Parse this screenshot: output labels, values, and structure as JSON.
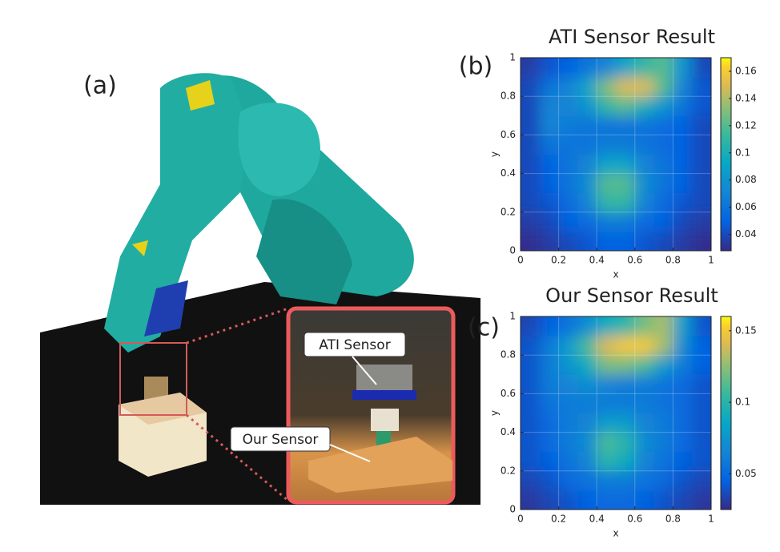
{
  "figure": {
    "panel_a": "(a)",
    "panel_b": "(b)",
    "panel_c": "(c)",
    "callout_ati": "ATI Sensor",
    "callout_ours": "Our Sensor"
  },
  "chart_data": [
    {
      "type": "heatmap",
      "title": "ATI Sensor Result",
      "xlabel": "x",
      "ylabel": "y",
      "xlim": [
        0,
        1
      ],
      "ylim": [
        0,
        1
      ],
      "xticks": [
        0,
        0.2,
        0.4,
        0.6,
        0.8,
        1
      ],
      "yticks": [
        0,
        0.2,
        0.4,
        0.6,
        0.8,
        1
      ],
      "colormap": "parula",
      "clim": [
        0.028,
        0.17
      ],
      "cticks": [
        0.04,
        0.06,
        0.08,
        0.1,
        0.12,
        0.14,
        0.16
      ],
      "z": [
        [
          0.03,
          0.035,
          0.04,
          0.045,
          0.05,
          0.05,
          0.045,
          0.04,
          0.035,
          0.03
        ],
        [
          0.035,
          0.04,
          0.05,
          0.055,
          0.065,
          0.065,
          0.055,
          0.05,
          0.04,
          0.035
        ],
        [
          0.04,
          0.045,
          0.055,
          0.07,
          0.11,
          0.11,
          0.07,
          0.055,
          0.045,
          0.04
        ],
        [
          0.04,
          0.05,
          0.06,
          0.075,
          0.12,
          0.12,
          0.075,
          0.06,
          0.05,
          0.04
        ],
        [
          0.04,
          0.05,
          0.06,
          0.07,
          0.09,
          0.09,
          0.07,
          0.06,
          0.05,
          0.04
        ],
        [
          0.04,
          0.06,
          0.06,
          0.06,
          0.065,
          0.065,
          0.06,
          0.055,
          0.05,
          0.04
        ],
        [
          0.04,
          0.07,
          0.065,
          0.06,
          0.06,
          0.06,
          0.06,
          0.055,
          0.05,
          0.04
        ],
        [
          0.04,
          0.07,
          0.07,
          0.08,
          0.11,
          0.12,
          0.1,
          0.08,
          0.06,
          0.045
        ],
        [
          0.04,
          0.06,
          0.07,
          0.09,
          0.13,
          0.15,
          0.15,
          0.12,
          0.07,
          0.045
        ],
        [
          0.035,
          0.045,
          0.05,
          0.06,
          0.07,
          0.09,
          0.11,
          0.12,
          0.08,
          0.04
        ]
      ]
    },
    {
      "type": "heatmap",
      "title": "Our Sensor Result",
      "xlabel": "x",
      "ylabel": "y",
      "xlim": [
        0,
        1
      ],
      "ylim": [
        0,
        1
      ],
      "xticks": [
        0,
        0.2,
        0.4,
        0.6,
        0.8,
        1
      ],
      "yticks": [
        0,
        0.2,
        0.4,
        0.6,
        0.8,
        1
      ],
      "colormap": "parula",
      "clim": [
        0.025,
        0.16
      ],
      "cticks": [
        0.05,
        0.1,
        0.15
      ],
      "z": [
        [
          0.03,
          0.035,
          0.04,
          0.045,
          0.05,
          0.05,
          0.045,
          0.04,
          0.035,
          0.03
        ],
        [
          0.035,
          0.04,
          0.05,
          0.055,
          0.06,
          0.06,
          0.055,
          0.05,
          0.04,
          0.035
        ],
        [
          0.04,
          0.045,
          0.055,
          0.065,
          0.1,
          0.09,
          0.065,
          0.055,
          0.045,
          0.04
        ],
        [
          0.04,
          0.05,
          0.06,
          0.07,
          0.11,
          0.1,
          0.07,
          0.06,
          0.05,
          0.04
        ],
        [
          0.04,
          0.05,
          0.06,
          0.065,
          0.08,
          0.08,
          0.065,
          0.06,
          0.05,
          0.04
        ],
        [
          0.04,
          0.055,
          0.06,
          0.06,
          0.06,
          0.06,
          0.06,
          0.055,
          0.05,
          0.04
        ],
        [
          0.04,
          0.06,
          0.065,
          0.07,
          0.065,
          0.06,
          0.06,
          0.055,
          0.05,
          0.04
        ],
        [
          0.04,
          0.06,
          0.075,
          0.09,
          0.12,
          0.12,
          0.11,
          0.08,
          0.06,
          0.045
        ],
        [
          0.04,
          0.06,
          0.08,
          0.11,
          0.14,
          0.15,
          0.15,
          0.13,
          0.07,
          0.045
        ],
        [
          0.035,
          0.045,
          0.055,
          0.07,
          0.09,
          0.1,
          0.12,
          0.13,
          0.08,
          0.04
        ]
      ]
    }
  ]
}
